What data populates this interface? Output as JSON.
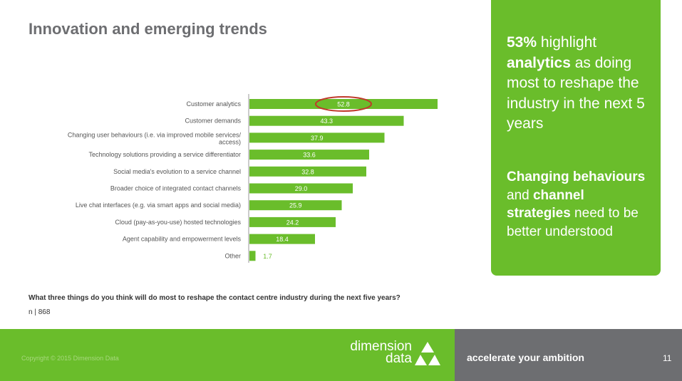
{
  "title": "Innovation and emerging trends",
  "chart_data": {
    "type": "bar",
    "orientation": "horizontal",
    "categories": [
      "Customer analytics",
      "Customer demands",
      "Changing user behaviours (i.e. via improved mobile services/ access)",
      "Technology solutions providing a service differentiator",
      "Social media's evolution to a service channel",
      "Broader choice of integrated contact channels",
      "Live chat interfaces (e.g. via smart apps and social media)",
      "Cloud (pay-as-you-use) hosted technologies",
      "Agent capability and empowerment levels",
      "Other"
    ],
    "values": [
      52.8,
      43.3,
      37.9,
      33.6,
      32.8,
      29.0,
      25.9,
      24.2,
      18.4,
      1.7
    ],
    "value_labels": [
      "52.8",
      "43.3",
      "37.9",
      "33.6",
      "32.8",
      "29.0",
      "25.9",
      "24.2",
      "18.4",
      "1.7"
    ],
    "highlighted": "Customer analytics",
    "bar_color": "#6abd2b",
    "highlight_color": "#c0392b",
    "grid": false
  },
  "callout": {
    "pct": "53%",
    "t1": " highlight ",
    "analytics": "analytics",
    "t2": " as doing most to reshape the industry in the next 5 years",
    "changing": "Changing behaviours",
    "t3": " and ",
    "channel": "channel strategies",
    "t4": " need to be better understood"
  },
  "question": "What three things do you think will do most to reshape the contact centre industry during the next five years?",
  "n": "n | 868",
  "footer": {
    "copyright": "Copyright © 2015 Dimension Data",
    "logo_line1": "dimension",
    "logo_line2": "data",
    "tagline": "accelerate your ambition",
    "page": "11"
  }
}
